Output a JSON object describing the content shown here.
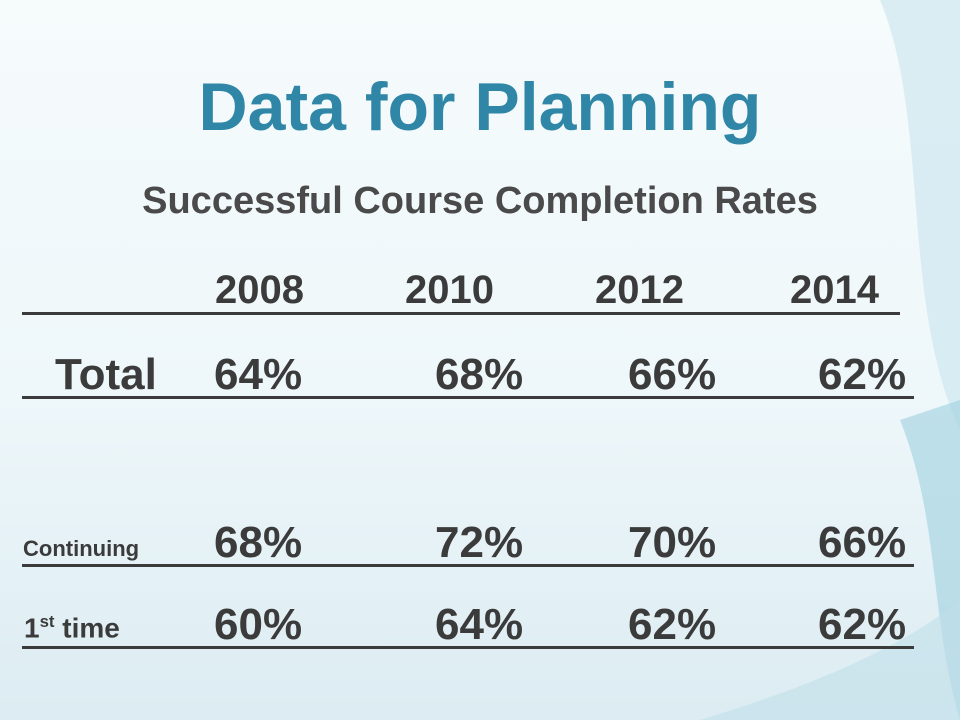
{
  "slide": {
    "title": "Data for Planning",
    "subtitle": "Successful Course Completion Rates"
  },
  "table": {
    "years": [
      "2008",
      "2010",
      "2012",
      "2014"
    ],
    "rows": [
      {
        "label": "Total",
        "values": [
          "64%",
          "68%",
          "66%",
          "62%"
        ]
      },
      {
        "label": "Continuing",
        "values": [
          "68%",
          "72%",
          "70%",
          "66%"
        ]
      },
      {
        "label_main": "1",
        "label_sup": "st",
        "label_rest": "time",
        "values": [
          "60%",
          "64%",
          "62%",
          "62%"
        ]
      }
    ]
  },
  "colors": {
    "title": "#2f86a6",
    "text": "#3b3b3b",
    "accent_wave": "#8cc5d8"
  }
}
